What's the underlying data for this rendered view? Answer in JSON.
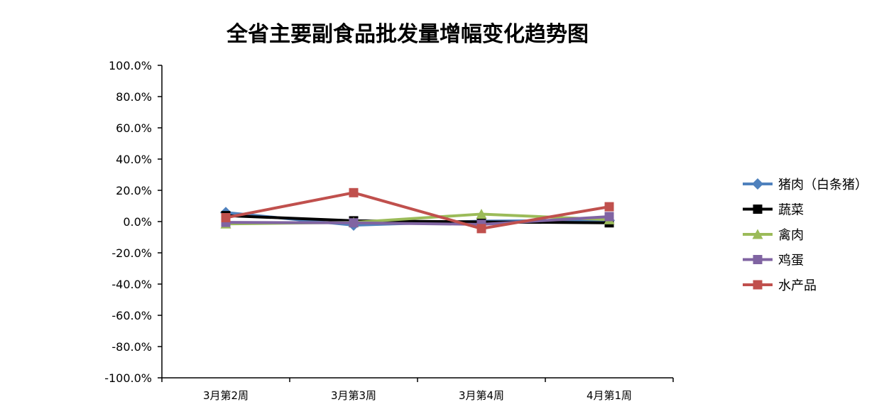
{
  "chart_data": {
    "type": "line",
    "title": "全省主要副食品批发量增幅变化趋势图",
    "xlabel": "",
    "ylabel": "",
    "categories": [
      "3月第2周",
      "3月第3周",
      "3月第4周",
      "4月第1周"
    ],
    "ylim": [
      -100,
      100
    ],
    "ytick_step": 20,
    "ytick_labels": [
      "100.0%",
      "80.0%",
      "60.0%",
      "40.0%",
      "20.0%",
      "0.0%",
      "-20.0%",
      "-40.0%",
      "-60.0%",
      "-80.0%",
      "-100.0%"
    ],
    "grid": false,
    "legend_position": "right",
    "series": [
      {
        "name": "猪肉（白条猪）",
        "values": [
          5.8,
          -2.3,
          0.3,
          0.8
        ],
        "color": "#4F81BD",
        "marker": "diamond"
      },
      {
        "name": "蔬菜",
        "values": [
          3.8,
          0.5,
          -0.2,
          -0.8
        ],
        "color": "#000000",
        "marker": "square"
      },
      {
        "name": "禽肉",
        "values": [
          -1.5,
          -0.5,
          4.8,
          1.2
        ],
        "color": "#9BBB59",
        "marker": "triangle"
      },
      {
        "name": "鸡蛋",
        "values": [
          -0.5,
          -0.8,
          -1.8,
          3.2
        ],
        "color": "#8064A2",
        "marker": "square"
      },
      {
        "name": "水产品",
        "values": [
          2.5,
          18.5,
          -4.5,
          9.5
        ],
        "color": "#C0504D",
        "marker": "square"
      }
    ]
  }
}
